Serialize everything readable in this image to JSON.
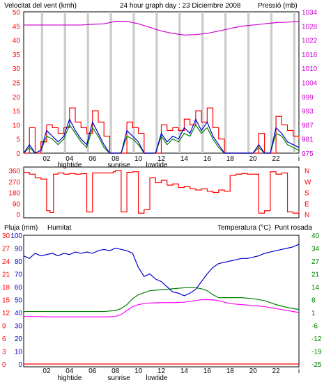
{
  "colors": {
    "wind": "#0000cc",
    "gust": "#ff0000",
    "wind_avg": "#008000",
    "pressure": "#cc00cc",
    "direction": "#ff0000",
    "humidity": "#0000cc",
    "temperature": "#008000",
    "dewpoint": "#ff00ff",
    "rain": "#ff0000",
    "daylight": "#cccccc",
    "grid": "#000000"
  },
  "header": {
    "wind_label": "Velocitat del vent (kmh)",
    "title": "24 hour graph day : 23 Diciembre 2008",
    "pressure_label": "Pressió (mb)"
  },
  "legend": {
    "rain": "Pluja (mm)",
    "humidity": "Humitat",
    "temperature": "Temperatura (°C)",
    "dewpoint": "Punt rosada"
  },
  "x_ticks": [
    "02",
    "04",
    "06",
    "08",
    "10",
    "12",
    "14",
    "16",
    "18",
    "20",
    "22",
    "i"
  ],
  "events": [
    {
      "label": "hightide",
      "hour": 4
    },
    {
      "label": "sunrise",
      "hour": 8.3
    },
    {
      "label": "lowtide",
      "hour": 11.6
    }
  ],
  "chart_data": [
    {
      "type": "line",
      "title": "Velocitat del vent (kmh)",
      "ylim_left": [
        0,
        50
      ],
      "yticks_left": [
        "0",
        "5",
        "10",
        "15",
        "20",
        "25",
        "30",
        "35",
        "40",
        "45",
        "50"
      ],
      "ylim_right": [
        975,
        1034
      ],
      "yticks_right": [
        "975",
        "981",
        "987",
        "993",
        "999",
        "1004",
        "1010",
        "1016",
        "1022",
        "1028",
        "1034"
      ],
      "daylight_hours": [
        [
          1.5,
          1.7
        ],
        [
          3.5,
          3.7
        ],
        [
          5.5,
          5.7
        ],
        [
          7.5,
          7.7
        ],
        [
          9.5,
          9.7
        ],
        [
          11.5,
          11.7
        ],
        [
          13.5,
          13.7
        ],
        [
          15.5,
          15.7
        ],
        [
          17.5,
          17.7
        ],
        [
          19.5,
          19.7
        ],
        [
          21.5,
          21.7
        ],
        [
          23.5,
          23.7
        ]
      ],
      "series": [
        {
          "name": "Pressió (mb)",
          "axis": "right",
          "x": [
            0,
            1,
            2,
            3,
            4,
            5,
            6,
            7,
            8,
            9,
            10,
            11,
            12,
            13,
            14,
            15,
            16,
            17,
            18,
            19,
            20,
            21,
            22,
            23,
            24
          ],
          "values": [
            1028.5,
            1028.5,
            1028.5,
            1028.5,
            1028.5,
            1028.5,
            1028.8,
            1029,
            1030,
            1030,
            1029,
            1027.5,
            1026,
            1025,
            1024.3,
            1024.5,
            1025,
            1026,
            1027,
            1028,
            1028.5,
            1029,
            1029.5,
            1029.7,
            1030
          ]
        },
        {
          "x": [
            0,
            0.5,
            1,
            1.5,
            2,
            2.5,
            3,
            3.5,
            4,
            4.5,
            5,
            5.5,
            6,
            6.5,
            7,
            7.5,
            8,
            8.5,
            9,
            9.5,
            10,
            10.5,
            11,
            11.5,
            12,
            12.5,
            13,
            13.5,
            14,
            14.5,
            15,
            15.5,
            16,
            16.5,
            17,
            17.5,
            18,
            18.5,
            19,
            19.5,
            20,
            20.5,
            21,
            21.5,
            22,
            22.5,
            23,
            23.5,
            24
          ],
          "values": [
            0,
            3,
            0,
            1,
            8,
            6,
            4,
            6,
            12,
            8,
            5,
            3,
            11,
            7,
            3,
            0,
            0,
            0,
            8,
            6,
            4,
            0,
            0,
            0,
            7,
            4,
            6,
            5,
            9,
            7,
            12,
            8,
            11,
            6,
            3,
            0,
            0,
            0,
            0,
            0,
            0,
            3,
            0,
            0,
            9,
            7,
            4,
            3,
            2
          ]
        },
        {
          "x": [
            0,
            0.5,
            1,
            1.5,
            2,
            2.5,
            3,
            3.5,
            4,
            4.5,
            5,
            5.5,
            6,
            6.5,
            7,
            7.5,
            8,
            8.5,
            9,
            9.5,
            10,
            10.5,
            11,
            11.5,
            12,
            12.5,
            13,
            13.5,
            14,
            14.5,
            15,
            15.5,
            16,
            16.5,
            17,
            17.5,
            18,
            18.5,
            19,
            19.5,
            20,
            20.5,
            21,
            21.5,
            22,
            22.5,
            23,
            23.5,
            24
          ],
          "values": [
            0,
            9,
            0,
            4,
            10,
            9,
            7,
            9,
            16,
            11,
            9,
            7,
            15,
            11,
            6,
            0,
            0,
            0,
            11,
            9,
            7,
            0,
            0,
            0,
            10,
            8,
            9,
            8,
            12,
            10,
            15,
            11,
            16,
            9,
            5,
            0,
            0,
            0,
            0,
            0,
            0,
            7,
            0,
            0,
            13,
            10,
            8,
            6,
            5
          ]
        },
        {
          "x": [
            0,
            0.5,
            1,
            1.5,
            2,
            2.5,
            3,
            3.5,
            4,
            4.5,
            5,
            5.5,
            6,
            6.5,
            7,
            7.5,
            8,
            8.5,
            9,
            9.5,
            10,
            10.5,
            11,
            11.5,
            12,
            12.5,
            13,
            13.5,
            14,
            14.5,
            15,
            15.5,
            16,
            16.5,
            17,
            17.5,
            18,
            18.5,
            19,
            19.5,
            20,
            20.5,
            21,
            21.5,
            22,
            22.5,
            23,
            23.5,
            24
          ],
          "values": [
            0,
            2,
            0,
            1,
            6,
            5,
            3,
            5,
            10,
            7,
            4,
            2,
            9,
            6,
            2,
            0,
            0,
            0,
            6,
            5,
            3,
            0,
            0,
            0,
            6,
            3,
            5,
            4,
            7,
            6,
            10,
            7,
            9,
            5,
            2,
            0,
            0,
            0,
            0,
            0,
            0,
            2,
            0,
            0,
            7,
            6,
            3,
            2,
            1
          ]
        }
      ]
    },
    {
      "type": "line",
      "ylim_left": [
        0,
        360
      ],
      "yticks_left": [
        "0",
        "90",
        "180",
        "270",
        "360"
      ],
      "yticks_right": [
        "N",
        "E",
        "S",
        "W",
        "N"
      ],
      "series": [
        {
          "x": [
            0,
            0.5,
            1,
            1.5,
            2,
            2.3,
            2.6,
            3,
            3.5,
            4,
            4.5,
            5,
            5.5,
            6,
            6.5,
            7,
            7.5,
            7.8,
            8,
            8.5,
            9,
            9.5,
            10,
            10.5,
            11,
            11.5,
            12,
            12.5,
            13,
            13.5,
            14,
            14.5,
            15,
            15.5,
            16,
            16.5,
            17,
            17.5,
            18,
            18.5,
            19,
            19.5,
            20,
            20.5,
            21,
            21.5,
            22,
            22.5,
            23,
            23.5,
            24
          ],
          "values": [
            345,
            330,
            300,
            290,
            30,
            15,
            330,
            340,
            330,
            335,
            330,
            335,
            20,
            340,
            340,
            340,
            340,
            350,
            360,
            20,
            345,
            350,
            10,
            40,
            300,
            260,
            280,
            240,
            250,
            220,
            230,
            210,
            200,
            210,
            190,
            180,
            200,
            190,
            320,
            330,
            335,
            330,
            330,
            10,
            30,
            350,
            330,
            340,
            20,
            10,
            30
          ]
        }
      ]
    },
    {
      "type": "line",
      "ylim_left_rain": [
        0,
        30
      ],
      "yticks_rain": [
        "0",
        "3",
        "6",
        "9",
        "12",
        "15",
        "18",
        "21",
        "24",
        "27",
        "30"
      ],
      "ylim_humidity": [
        0,
        100
      ],
      "yticks_humidity": [
        "0",
        "10",
        "20",
        "30",
        "40",
        "50",
        "60",
        "70",
        "80",
        "90",
        "100"
      ],
      "ylim_right": [
        -25,
        40
      ],
      "yticks_right": [
        "-25",
        "-19",
        "-12",
        "-6",
        "1",
        "8",
        "14",
        "21",
        "27",
        "34",
        "40"
      ],
      "series": [
        {
          "name": "Pluja (mm)",
          "axis": "rain",
          "x": [
            0,
            24
          ],
          "values": [
            0,
            0
          ]
        },
        {
          "name": "Humitat",
          "axis": "humidity",
          "x": [
            0,
            0.5,
            1,
            1.5,
            2,
            2.5,
            3,
            3.5,
            4,
            4.5,
            5,
            5.5,
            6,
            6.5,
            7,
            7.5,
            8,
            8.5,
            9,
            9.5,
            10,
            10.5,
            11,
            11.5,
            12,
            12.5,
            13,
            13.5,
            14,
            14.5,
            15,
            15.5,
            16,
            16.5,
            17,
            17.5,
            18,
            18.5,
            19,
            19.5,
            20,
            20.5,
            21,
            21.5,
            22,
            22.5,
            23,
            23.5,
            24
          ],
          "values": [
            84,
            82,
            86,
            84,
            85,
            86,
            84,
            86,
            85,
            87,
            86,
            87,
            86,
            88,
            89,
            88,
            90,
            89,
            88,
            86,
            75,
            68,
            70,
            66,
            64,
            60,
            56,
            55,
            53,
            55,
            58,
            64,
            70,
            75,
            78,
            79,
            80,
            81,
            82,
            82,
            83,
            84,
            86,
            87,
            88,
            89,
            90,
            91,
            93
          ]
        },
        {
          "name": "Temperatura (°C)",
          "axis": "right",
          "x": [
            0,
            1,
            2,
            3,
            4,
            5,
            6,
            7,
            8,
            8.5,
            9,
            9.5,
            10,
            10.5,
            11,
            12,
            13,
            14,
            14.5,
            15,
            15.5,
            16,
            16.5,
            17,
            18,
            19,
            20,
            21,
            22,
            23,
            24
          ],
          "values": [
            1.5,
            1.5,
            1.5,
            1.5,
            1.5,
            1.5,
            1.5,
            1.5,
            2,
            3,
            5,
            8,
            10,
            11,
            12,
            12.5,
            13,
            13.5,
            13.5,
            13.5,
            13,
            12,
            10,
            8.5,
            8.5,
            8.5,
            8,
            7,
            5,
            3.5,
            2.5
          ]
        },
        {
          "name": "Punt rosada",
          "axis": "right",
          "x": [
            0,
            1,
            2,
            3,
            4,
            5,
            6,
            7,
            8,
            8.5,
            9,
            9.5,
            10,
            10.5,
            11,
            12,
            13,
            14,
            15,
            15.5,
            16,
            16.5,
            17,
            18,
            19,
            20,
            21,
            22,
            23,
            24
          ],
          "values": [
            -1,
            -1,
            -1.2,
            -1.2,
            -1.2,
            -1.2,
            -1.2,
            -1.2,
            -1,
            0,
            2,
            4,
            5,
            5.5,
            5.8,
            6,
            6,
            6.2,
            7,
            7.5,
            7.5,
            7.4,
            7,
            5.5,
            5,
            4.5,
            4,
            3,
            2,
            1
          ]
        }
      ]
    }
  ]
}
